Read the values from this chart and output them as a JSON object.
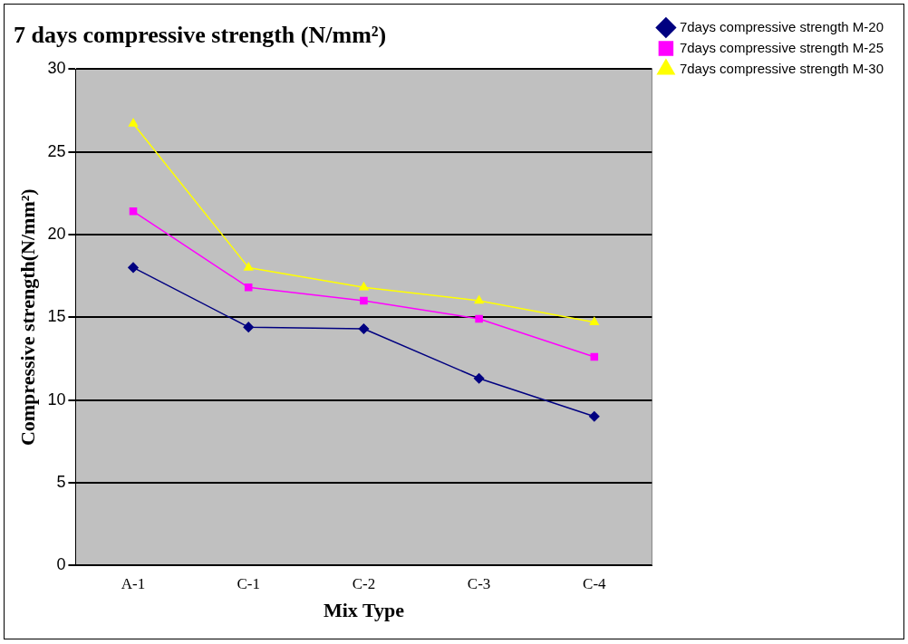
{
  "chart_data": {
    "type": "line",
    "title": "7 days compressive strength (N/mm²)",
    "xlabel": "Mix Type",
    "ylabel": "Compressive strength(N/mm²)",
    "categories": [
      "A-1",
      "C-1",
      "C-2",
      "C-3",
      "C-4"
    ],
    "series": [
      {
        "name": "7days compressive strength M-20",
        "color": "#000080",
        "marker": "diamond",
        "values": [
          18.0,
          14.4,
          14.3,
          11.3,
          9.0
        ]
      },
      {
        "name": "7days compressive strength M-25",
        "color": "#ff00ff",
        "marker": "square",
        "values": [
          21.4,
          16.8,
          16.0,
          14.9,
          12.6
        ]
      },
      {
        "name": "7days compressive strength M-30",
        "color": "#ffff00",
        "marker": "triangle",
        "values": [
          26.7,
          18.0,
          16.8,
          16.0,
          14.7
        ]
      }
    ],
    "ylim": [
      0,
      30
    ],
    "yticks": [
      0,
      5,
      10,
      15,
      20,
      25,
      30
    ],
    "grid": "y",
    "legend": "top right"
  }
}
